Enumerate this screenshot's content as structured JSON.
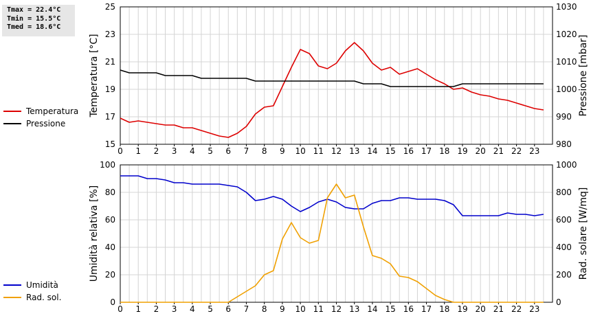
{
  "stats": {
    "tmax": "Tmax = 22.4°C",
    "tmin": "Tmin = 15.5°C",
    "tmed": "Tmed = 18.6°C"
  },
  "chart_data": [
    {
      "type": "line",
      "xlabel": "",
      "ylabel_left": "Temperatura [°C]",
      "ylabel_right": "Pressione [mbar]",
      "x_ticks": [
        "0",
        "1",
        "2",
        "3",
        "4",
        "5",
        "6",
        "7",
        "8",
        "9",
        "10",
        "11",
        "12",
        "13",
        "14",
        "15",
        "16",
        "17",
        "18",
        "19",
        "20",
        "21",
        "22",
        "23"
      ],
      "xlim": [
        0,
        24
      ],
      "ylim_left": [
        15,
        25
      ],
      "ylim_right": [
        980,
        1030
      ],
      "y_ticks_left": [
        "15",
        "17",
        "19",
        "21",
        "23",
        "25"
      ],
      "y_ticks_right": [
        "980",
        "990",
        "1000",
        "1010",
        "1020",
        "1030"
      ],
      "grid": true,
      "legend_position": "left",
      "series": [
        {
          "name": "Temperatura",
          "axis": "left",
          "color": "#dd0000",
          "x": [
            0,
            0.5,
            1,
            1.5,
            2,
            2.5,
            3,
            3.5,
            4,
            4.5,
            5,
            5.5,
            6,
            6.5,
            7,
            7.5,
            8,
            8.5,
            9,
            9.5,
            10,
            10.5,
            11,
            11.5,
            12,
            12.5,
            13,
            13.5,
            14,
            14.5,
            15,
            15.5,
            16,
            16.5,
            17,
            17.5,
            18,
            18.5,
            19,
            19.5,
            20,
            20.5,
            21,
            21.5,
            22,
            22.5,
            23,
            23.5
          ],
          "values": [
            16.9,
            16.6,
            16.7,
            16.6,
            16.5,
            16.4,
            16.4,
            16.2,
            16.2,
            16.0,
            15.8,
            15.6,
            15.5,
            15.8,
            16.3,
            17.2,
            17.7,
            17.8,
            19.2,
            20.6,
            21.9,
            21.6,
            20.7,
            20.5,
            20.9,
            21.8,
            22.4,
            21.8,
            20.9,
            20.4,
            20.6,
            20.1,
            20.3,
            20.5,
            20.1,
            19.7,
            19.4,
            19.0,
            19.1,
            18.8,
            18.6,
            18.5,
            18.3,
            18.2,
            18.0,
            17.8,
            17.6,
            17.5
          ]
        },
        {
          "name": "Pressione",
          "axis": "right",
          "color": "#000000",
          "x": [
            0,
            0.5,
            2,
            2.5,
            4,
            4.5,
            7,
            7.5,
            13,
            13.5,
            14.5,
            15,
            18.5,
            19,
            23.5
          ],
          "values": [
            1007,
            1006,
            1006,
            1005,
            1005,
            1004,
            1004,
            1003,
            1003,
            1002,
            1002,
            1001,
            1001,
            1002,
            1002
          ]
        }
      ]
    },
    {
      "type": "line",
      "xlabel": "",
      "ylabel_left": "Umidità relativa [%]",
      "ylabel_right": "Rad. solare [W/mq]",
      "x_ticks": [
        "0",
        "1",
        "2",
        "3",
        "4",
        "5",
        "6",
        "7",
        "8",
        "9",
        "10",
        "11",
        "12",
        "13",
        "14",
        "15",
        "16",
        "17",
        "18",
        "19",
        "20",
        "21",
        "22",
        "23"
      ],
      "xlim": [
        0,
        24
      ],
      "ylim_left": [
        0,
        100
      ],
      "ylim_right": [
        0,
        1000
      ],
      "y_ticks_left": [
        "0",
        "20",
        "40",
        "60",
        "80",
        "100"
      ],
      "y_ticks_right": [
        "0",
        "200",
        "400",
        "600",
        "800",
        "1000"
      ],
      "grid": true,
      "legend_position": "left",
      "series": [
        {
          "name": "Umidità",
          "axis": "left",
          "color": "#0000cc",
          "x": [
            0,
            1,
            1.5,
            2,
            2.5,
            3,
            3.5,
            4,
            4.5,
            5,
            5.5,
            6,
            6.5,
            7,
            7.5,
            8,
            8.5,
            9,
            9.5,
            10,
            10.5,
            11,
            11.5,
            12,
            12.5,
            13,
            13.5,
            14,
            14.5,
            15,
            15.5,
            16,
            16.5,
            17,
            17.5,
            18,
            18.5,
            19,
            19.5,
            20,
            20.5,
            21,
            21.5,
            22,
            22.5,
            23,
            23.5
          ],
          "values": [
            92,
            92,
            90,
            90,
            89,
            87,
            87,
            86,
            86,
            86,
            86,
            85,
            84,
            80,
            74,
            75,
            77,
            75,
            70,
            66,
            69,
            73,
            75,
            73,
            69,
            68,
            68,
            72,
            74,
            74,
            76,
            76,
            75,
            75,
            75,
            74,
            71,
            63,
            63,
            63,
            63,
            63,
            65,
            64,
            64,
            63,
            64
          ]
        },
        {
          "name": "Rad. sol.",
          "axis": "right",
          "color": "#f0a000",
          "x": [
            0,
            6,
            6.5,
            7,
            7.5,
            8,
            8.5,
            9,
            9.5,
            10,
            10.5,
            11,
            11.5,
            12,
            12.5,
            13,
            13.5,
            14,
            14.5,
            15,
            15.5,
            16,
            16.5,
            17,
            17.5,
            18,
            18.5,
            19,
            23.5
          ],
          "values": [
            0,
            0,
            40,
            80,
            120,
            200,
            230,
            460,
            580,
            470,
            430,
            450,
            760,
            860,
            760,
            780,
            550,
            340,
            320,
            280,
            190,
            180,
            150,
            100,
            50,
            20,
            0,
            0,
            0
          ]
        }
      ]
    }
  ]
}
